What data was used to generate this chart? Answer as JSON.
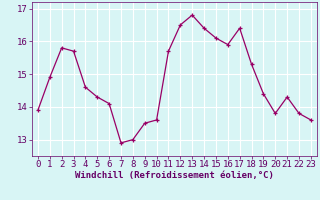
{
  "x": [
    0,
    1,
    2,
    3,
    4,
    5,
    6,
    7,
    8,
    9,
    10,
    11,
    12,
    13,
    14,
    15,
    16,
    17,
    18,
    19,
    20,
    21,
    22,
    23
  ],
  "y": [
    13.9,
    14.9,
    15.8,
    15.7,
    14.6,
    14.3,
    14.1,
    12.9,
    13.0,
    13.5,
    13.6,
    15.7,
    16.5,
    16.8,
    16.4,
    16.1,
    15.9,
    16.4,
    15.3,
    14.4,
    13.8,
    14.3,
    13.8,
    13.6
  ],
  "line_color": "#990066",
  "marker": "+",
  "bg_color": "#d8f5f5",
  "grid_color": "#ffffff",
  "xlabel": "Windchill (Refroidissement éolien,°C)",
  "xlabel_color": "#660066",
  "tick_color": "#660066",
  "ylim": [
    12.5,
    17.2
  ],
  "xlim": [
    -0.5,
    23.5
  ],
  "yticks": [
    13,
    14,
    15,
    16,
    17
  ],
  "xticks": [
    0,
    1,
    2,
    3,
    4,
    5,
    6,
    7,
    8,
    9,
    10,
    11,
    12,
    13,
    14,
    15,
    16,
    17,
    18,
    19,
    20,
    21,
    22,
    23
  ],
  "font_size": 6.5,
  "marker_size": 3,
  "line_width": 0.9
}
